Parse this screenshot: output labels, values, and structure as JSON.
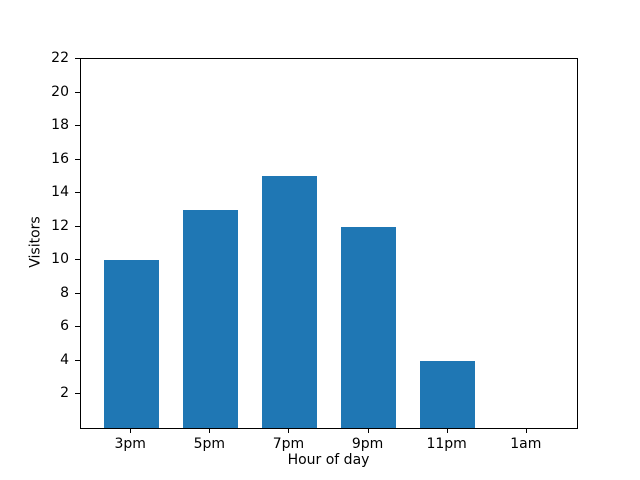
{
  "chart_data": {
    "type": "bar",
    "title": "",
    "xlabel": "Hour of day",
    "ylabel": "Visitors",
    "categories": [
      "3pm",
      "5pm",
      "7pm",
      "9pm",
      "11pm",
      "1am"
    ],
    "values": [
      10,
      13,
      15,
      12,
      4,
      0
    ],
    "yticks": [
      2,
      4,
      6,
      8,
      10,
      12,
      14,
      16,
      18,
      20,
      22
    ],
    "ylim": [
      0,
      22
    ],
    "bar_color": "#1f77b4",
    "bar_width_fraction": 0.7,
    "grid": false,
    "legend": "none",
    "background_color": "#ffffff",
    "spine_color": "#000000"
  }
}
